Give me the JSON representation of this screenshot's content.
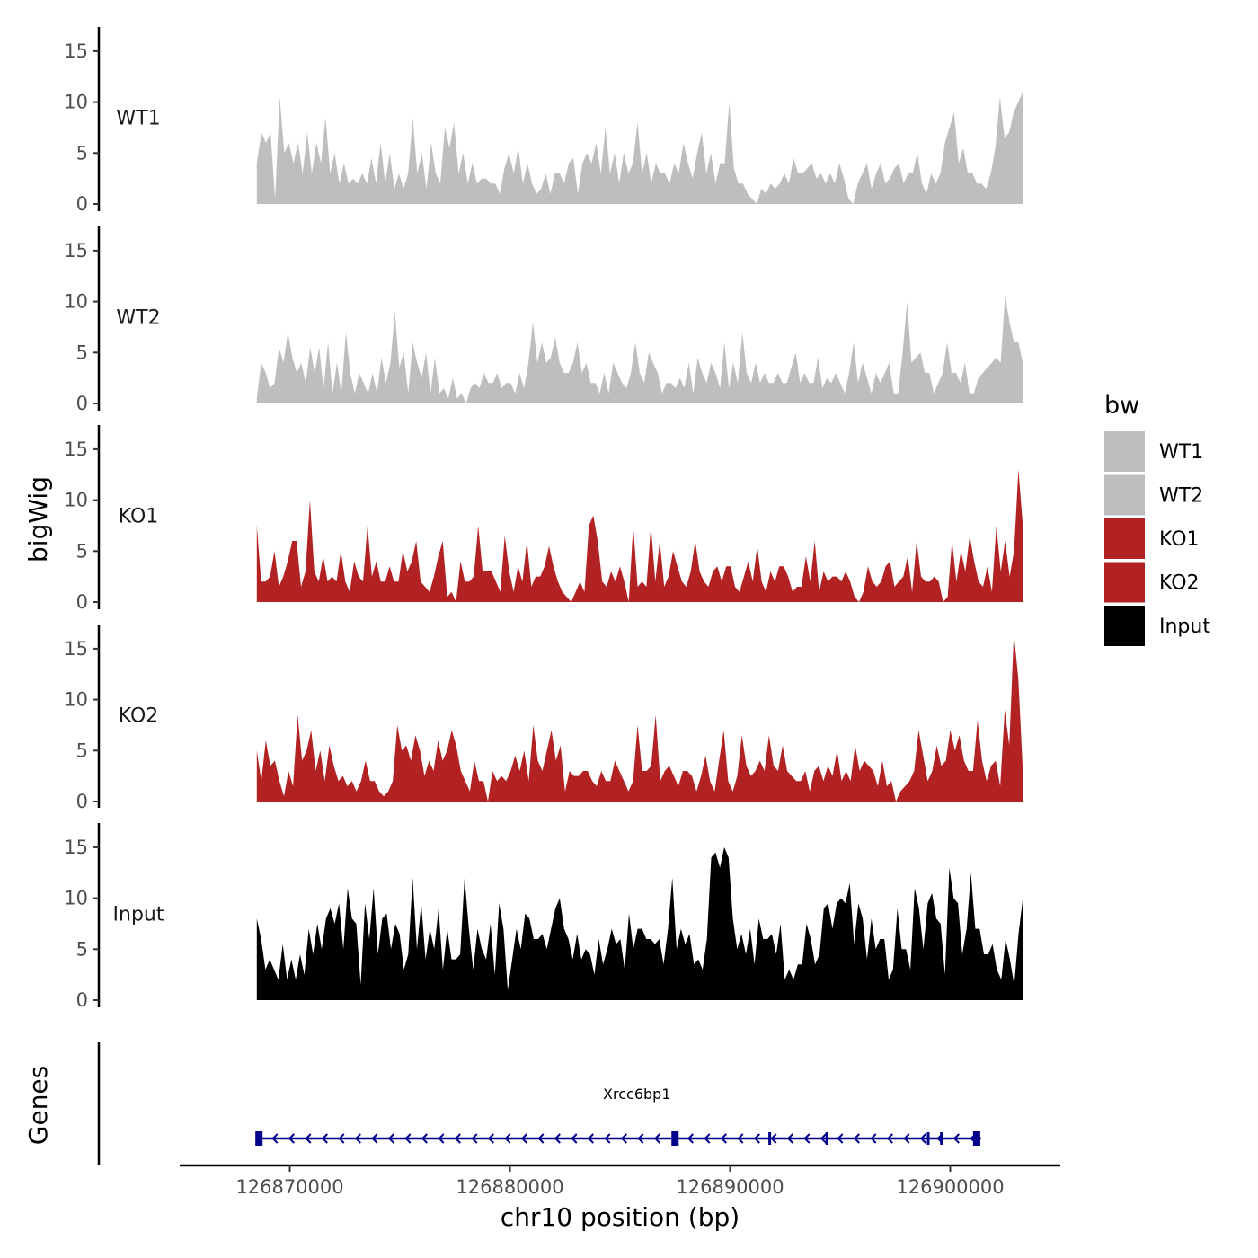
{
  "chart_data": {
    "type": "area",
    "y_axis_title": "bigWig",
    "genes_axis_title": "Genes",
    "x_axis_title": "chr10 position (bp)",
    "x_range": [
      126865000,
      126905000
    ],
    "x_ticks": [
      126870000,
      126880000,
      126890000,
      126900000
    ],
    "x_tick_labels": [
      "126870000",
      "126880000",
      "126890000",
      "126900000"
    ],
    "region_start": 126868500,
    "region_end": 126903300,
    "y_range": [
      0,
      17
    ],
    "y_ticks": [
      0,
      5,
      10,
      15
    ],
    "y_tick_labels": [
      "0",
      "5",
      "10",
      "15"
    ],
    "tracks": [
      {
        "name": "WT1",
        "color": "#bebebe",
        "values": [
          4,
          7,
          6,
          7,
          0.5,
          10.5,
          5,
          6,
          4,
          6,
          3,
          7,
          3,
          6,
          4,
          8.5,
          3,
          5,
          2,
          4,
          2,
          2.5,
          2,
          3,
          2,
          4.5,
          2,
          6,
          2,
          5,
          1.5,
          3,
          1.5,
          3,
          8.5,
          3,
          5,
          1.5,
          6,
          3,
          2,
          7.5,
          5.5,
          8,
          3,
          5,
          2,
          4,
          2,
          2.5,
          2.5,
          2,
          2,
          1,
          3.5,
          5,
          3,
          5.5,
          2,
          4,
          2,
          1,
          1.5,
          3,
          1,
          3,
          3,
          2,
          4,
          4.5,
          1,
          4,
          5,
          4,
          6,
          3,
          7.5,
          3,
          5,
          2,
          5,
          3,
          4,
          8,
          3,
          5,
          2,
          4,
          3,
          3,
          2,
          4,
          3,
          6,
          4,
          2.5,
          5,
          7,
          3,
          5,
          2,
          4,
          4,
          10,
          3.5,
          2,
          2,
          1,
          0.5,
          0,
          1.5,
          1,
          2,
          1.5,
          2,
          3,
          2,
          4.5,
          3,
          3,
          3.5,
          4,
          2.5,
          3,
          2,
          3,
          2,
          4,
          2.5,
          0.5,
          0,
          2,
          3,
          4,
          1.5,
          3,
          4,
          2,
          2.5,
          3.5,
          4,
          2,
          3,
          3,
          5,
          2,
          1,
          3,
          2,
          3,
          6,
          7.5,
          9,
          4,
          5.5,
          3,
          3,
          2,
          2,
          1.5,
          3,
          5.5,
          10.5,
          6.5,
          7,
          9,
          10,
          11
        ]
      },
      {
        "name": "WT2",
        "color": "#bebebe",
        "values": [
          0.5,
          4,
          3,
          1.5,
          2,
          5.5,
          4,
          7,
          4.5,
          3,
          4,
          2,
          5.5,
          3,
          5.5,
          1.5,
          6,
          1,
          4,
          1,
          7,
          3,
          1,
          3,
          2,
          1,
          3,
          1,
          4.5,
          2,
          4,
          9,
          3.5,
          5,
          1,
          6,
          4,
          2.5,
          5,
          1,
          4.5,
          1,
          1.5,
          0.5,
          2.5,
          0.5,
          1,
          0,
          1.5,
          2,
          1.5,
          3,
          2,
          2,
          3,
          1.5,
          2,
          2,
          1,
          3,
          1.5,
          4,
          8,
          4,
          6,
          4,
          4.5,
          6.5,
          4,
          3,
          3,
          4,
          6,
          3,
          4,
          2,
          2,
          1,
          3,
          1,
          4,
          3,
          2,
          1.5,
          3,
          6,
          3,
          2,
          5,
          4,
          3,
          1,
          2,
          2,
          1.5,
          2.5,
          1.5,
          4,
          1,
          4.5,
          3,
          2,
          4,
          3,
          1.5,
          6,
          1.5,
          4,
          2,
          7,
          3,
          2,
          4,
          2,
          3,
          2,
          2,
          3,
          2,
          2,
          3.5,
          5,
          2,
          3,
          2,
          2,
          4.5,
          1.5,
          2.5,
          2,
          3,
          2,
          1,
          3,
          6,
          2,
          4,
          2.5,
          1,
          3,
          2,
          3,
          4,
          1,
          1,
          5,
          10,
          4,
          4.5,
          5,
          3,
          3,
          1,
          2,
          3,
          6,
          3,
          3,
          2,
          4,
          1,
          1,
          2.5,
          3,
          3.5,
          4,
          4.5,
          4,
          10.5,
          8,
          6,
          6,
          4
        ]
      },
      {
        "name": "KO1",
        "color": "#b22222",
        "values": [
          7.5,
          2,
          2,
          2.5,
          5,
          1.5,
          2.5,
          4,
          6,
          6,
          1.5,
          3,
          10,
          3,
          2,
          4.5,
          2,
          2.5,
          2,
          5,
          2,
          1,
          4,
          2.5,
          2,
          7.5,
          2.5,
          4,
          2,
          2,
          3.5,
          2,
          2,
          5,
          3,
          4,
          6,
          2,
          1.5,
          1,
          2.5,
          4.5,
          6,
          0.5,
          1,
          0,
          4,
          2,
          2,
          2.5,
          7.5,
          3,
          3,
          3,
          2,
          1,
          6.5,
          3,
          1,
          3.5,
          2,
          6,
          1.5,
          2.5,
          2.5,
          3.5,
          5.5,
          3.5,
          2,
          1,
          0.5,
          0,
          1,
          2,
          1,
          7.5,
          8.5,
          6,
          2,
          1.5,
          3,
          2,
          3.5,
          2,
          0,
          7.5,
          1.5,
          2,
          1.5,
          7.5,
          2,
          6,
          1.5,
          2.5,
          5,
          3.5,
          2,
          1.5,
          3,
          6,
          3,
          2,
          1.5,
          3,
          3.5,
          2,
          3.5,
          3.5,
          1.5,
          1,
          2.5,
          4,
          2,
          5.5,
          2,
          1,
          3,
          2,
          3.5,
          3.5,
          2.5,
          1,
          1.5,
          1.5,
          4.5,
          2,
          6,
          1,
          3,
          2,
          2.5,
          2.5,
          2,
          3,
          2,
          0.5,
          0,
          1,
          3.5,
          2,
          1.5,
          2,
          3.5,
          4,
          1.5,
          2,
          2.5,
          4.5,
          1,
          6,
          2.5,
          2,
          2,
          2.5,
          2,
          0,
          0.5,
          6,
          2,
          5,
          3,
          6.5,
          4,
          2,
          1.5,
          3.5,
          1,
          7.5,
          3,
          6,
          2.5,
          5,
          13,
          7.5
        ]
      },
      {
        "name": "KO2",
        "color": "#b22222",
        "values": [
          5,
          2,
          6,
          3.5,
          4,
          2,
          0.5,
          3,
          1.5,
          8.5,
          4,
          5,
          7,
          3,
          5,
          2,
          5.5,
          3.5,
          2,
          2.5,
          1.5,
          2,
          1,
          2,
          4,
          2,
          2,
          1,
          0.5,
          1,
          2,
          7.5,
          5,
          5.5,
          4,
          6.5,
          5,
          2.5,
          4,
          3,
          6,
          4,
          5,
          7,
          5.5,
          3,
          2,
          1,
          4,
          2,
          2,
          0,
          3,
          2,
          2.5,
          2,
          3,
          4.5,
          3,
          5,
          2,
          7.5,
          4,
          3,
          5,
          7,
          4,
          5.5,
          1,
          3,
          2.5,
          2.5,
          3,
          3,
          2,
          1.5,
          3,
          2,
          2,
          4,
          3,
          2,
          1,
          2,
          7.5,
          3,
          3,
          3.5,
          8.5,
          2,
          3,
          3.5,
          2.5,
          1.5,
          3,
          3,
          2.5,
          1,
          2.5,
          4.5,
          2,
          1,
          4,
          7,
          2,
          1,
          2.5,
          6.5,
          3.5,
          2.5,
          3,
          4,
          3,
          6.5,
          3.5,
          3,
          5.5,
          3,
          2.5,
          2,
          2,
          3,
          1,
          3,
          3.5,
          2,
          3.5,
          2.5,
          5,
          2,
          3,
          2,
          5.5,
          3,
          4,
          3.5,
          3,
          1.5,
          4,
          1.5,
          2,
          0,
          1,
          1.5,
          2,
          3,
          7,
          4.5,
          2,
          3,
          5.5,
          3.5,
          4,
          7,
          5,
          6.5,
          4,
          3,
          3,
          8,
          4,
          2,
          3.5,
          4,
          1.5,
          9,
          5.5,
          16.5,
          12,
          3
        ]
      },
      {
        "name": "Input",
        "color": "#000000",
        "values": [
          8,
          6,
          3,
          4,
          3,
          2,
          5.5,
          2,
          4,
          2,
          4.5,
          2.5,
          7,
          4.5,
          7.5,
          5,
          8,
          9,
          7.5,
          9.5,
          5,
          11,
          8,
          7.5,
          1.5,
          9.5,
          6,
          11,
          4.5,
          8,
          8.5,
          5,
          7.5,
          6.5,
          3,
          4.5,
          12,
          5,
          9.5,
          4,
          7,
          5,
          9,
          3,
          7,
          4,
          4,
          4.5,
          12,
          7,
          3,
          7,
          5,
          4,
          7.5,
          2.5,
          9.5,
          7,
          1,
          4,
          7,
          5,
          8.5,
          8,
          6,
          6,
          6.5,
          5,
          7,
          9,
          10,
          7,
          6,
          4,
          6.5,
          4,
          5,
          4.5,
          2.5,
          6,
          3.5,
          5,
          7,
          5.5,
          6,
          3,
          8.5,
          5,
          7,
          7,
          6,
          6,
          5.5,
          6,
          3.5,
          7,
          12,
          5,
          7,
          5.5,
          6.5,
          3.5,
          4,
          3,
          6,
          14,
          14.5,
          13,
          15,
          14,
          8,
          5,
          6.5,
          4.5,
          7,
          3.5,
          8,
          6,
          6,
          6.5,
          4.5,
          7.5,
          2,
          3,
          2,
          3.5,
          3.5,
          7.5,
          6,
          3.5,
          4.5,
          9,
          9.5,
          7,
          9.5,
          10,
          9.5,
          11.5,
          5.5,
          9.5,
          8,
          4,
          8,
          5,
          6,
          6,
          2,
          3,
          9,
          5,
          5,
          3,
          11,
          9,
          5,
          9.5,
          10.5,
          8,
          7.5,
          2.5,
          13,
          10,
          9.5,
          4.5,
          7,
          12.5,
          7,
          7,
          4.5,
          4.5,
          5.5,
          3,
          2,
          6,
          4,
          1.5,
          6.5,
          10
        ]
      }
    ],
    "legend": {
      "title": "bw",
      "entries": [
        {
          "label": "WT1",
          "color": "#bebebe"
        },
        {
          "label": "WT2",
          "color": "#bebebe"
        },
        {
          "label": "KO1",
          "color": "#b22222"
        },
        {
          "label": "KO2",
          "color": "#b22222"
        },
        {
          "label": "Input",
          "color": "#000000"
        }
      ]
    },
    "gene": {
      "name": "Xrcc6bp1",
      "strand": "-",
      "color": "#00008b",
      "start": 126868500,
      "end": 126901400,
      "exons": [
        126868600,
        126887500,
        126891800,
        126894400,
        126899000,
        126899600,
        126901200
      ]
    }
  }
}
